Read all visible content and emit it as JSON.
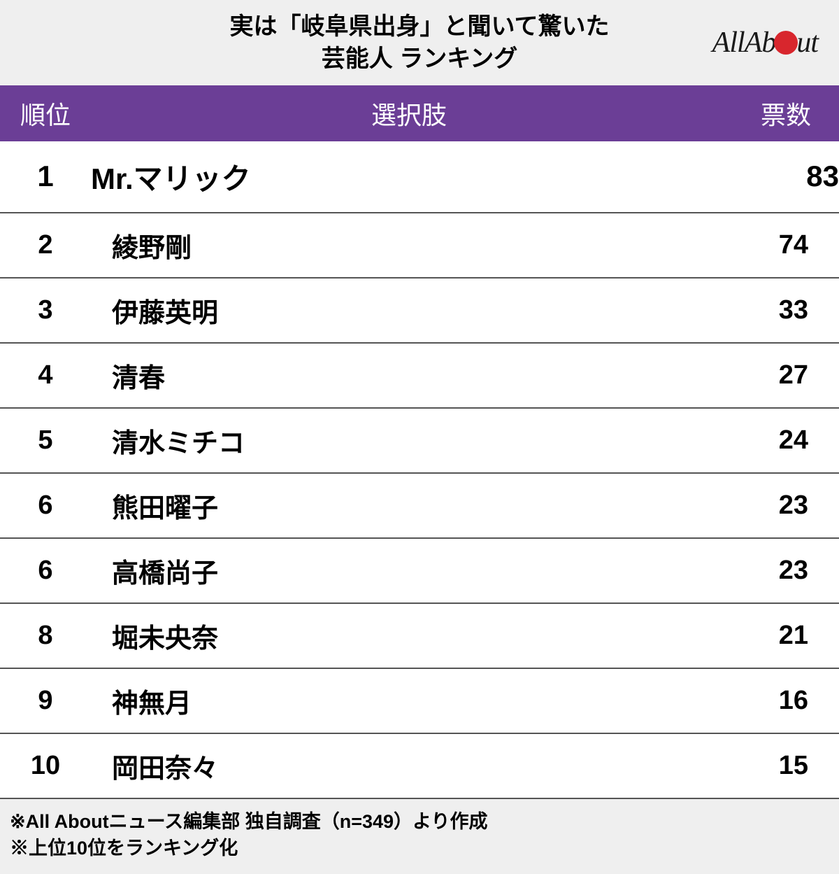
{
  "header": {
    "title_line1": "実は「岐阜県出身」と聞いて驚いた",
    "title_line2": "芸能人 ランキング",
    "logo_text_before": "AllAb",
    "logo_text_after": "ut"
  },
  "table": {
    "type": "table",
    "header_bg_color": "#6b3e96",
    "header_text_color": "#ffffff",
    "row_border_color": "#555555",
    "columns": [
      {
        "key": "rank",
        "label": "順位",
        "width": 130,
        "align": "center"
      },
      {
        "key": "name",
        "label": "選択肢",
        "align": "left"
      },
      {
        "key": "votes",
        "label": "票数",
        "width": 160,
        "align": "right"
      }
    ],
    "first_row_fontsize": 42,
    "row_fontsize": 38,
    "rows": [
      {
        "rank": "1",
        "name": "Mr.マリック",
        "votes": "83"
      },
      {
        "rank": "2",
        "name": "綾野剛",
        "votes": "74"
      },
      {
        "rank": "3",
        "name": "伊藤英明",
        "votes": "33"
      },
      {
        "rank": "4",
        "name": "清春",
        "votes": "27"
      },
      {
        "rank": "5",
        "name": "清水ミチコ",
        "votes": "24"
      },
      {
        "rank": "6",
        "name": "熊田曜子",
        "votes": "23"
      },
      {
        "rank": "6",
        "name": "高橋尚子",
        "votes": "23"
      },
      {
        "rank": "8",
        "name": "堀未央奈",
        "votes": "21"
      },
      {
        "rank": "9",
        "name": "神無月",
        "votes": "16"
      },
      {
        "rank": "10",
        "name": "岡田奈々",
        "votes": "15"
      }
    ]
  },
  "footnotes": {
    "line1": "※All Aboutニュース編集部 独自調査（n=349）より作成",
    "line2": "※上位10位をランキング化"
  },
  "colors": {
    "header_bg": "#efefef",
    "footer_bg": "#efefef",
    "logo_dot": "#d8262d",
    "text": "#000000"
  }
}
